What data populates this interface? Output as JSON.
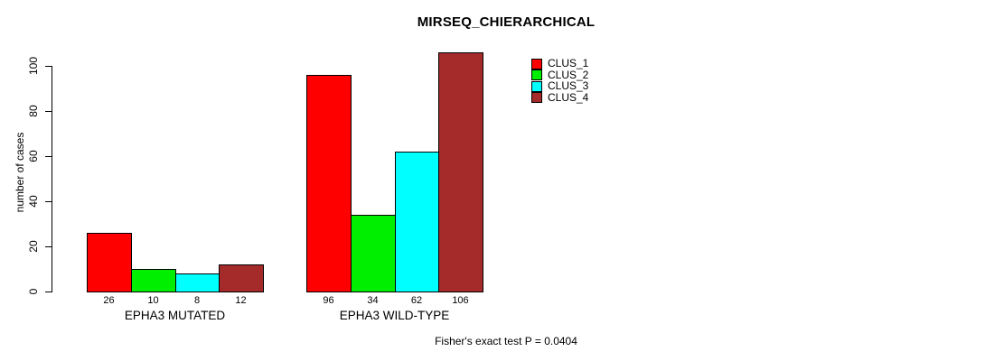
{
  "chart_data": {
    "type": "bar",
    "title": "MIRSEQ_CHIERARCHICAL",
    "ylabel": "number of cases",
    "xlabel": "",
    "yticks": [
      0,
      20,
      40,
      60,
      80,
      100
    ],
    "ylim": [
      0,
      106
    ],
    "grid": false,
    "legend_position": "top-right",
    "categories": [
      "EPHA3 MUTATED",
      "EPHA3 WILD-TYPE"
    ],
    "series": [
      {
        "name": "CLUS_1",
        "color": "#ff0000",
        "values": [
          26,
          96
        ]
      },
      {
        "name": "CLUS_2",
        "color": "#00ee00",
        "values": [
          10,
          34
        ]
      },
      {
        "name": "CLUS_3",
        "color": "#00ffff",
        "values": [
          8,
          62
        ]
      },
      {
        "name": "CLUS_4",
        "color": "#a52a2a",
        "values": [
          12,
          106
        ]
      }
    ],
    "bar_value_labels": [
      26,
      10,
      8,
      12,
      96,
      34,
      62,
      106
    ],
    "footnote": "Fisher's exact test P = 0.0404"
  }
}
